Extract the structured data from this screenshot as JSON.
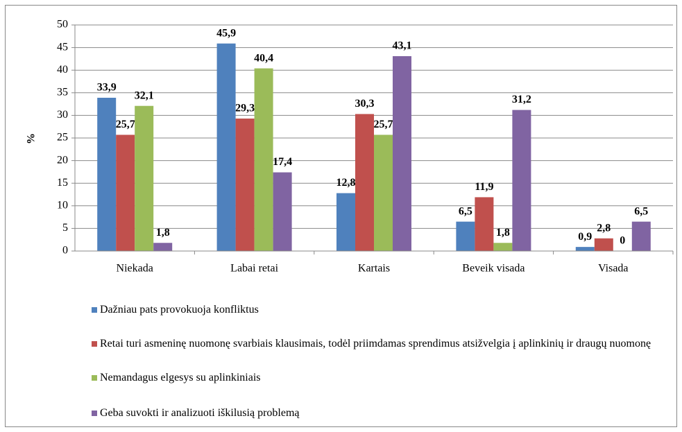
{
  "chart_data": {
    "type": "bar",
    "y_label": "%",
    "categories": [
      "Niekada",
      "Labai retai",
      "Kartais",
      "Beveik visada",
      "Visada"
    ],
    "series": [
      {
        "name": "Dažniau pats provokuoja konfliktus",
        "color": "#4f81bd",
        "values": [
          33.9,
          45.9,
          12.8,
          6.5,
          0.9
        ],
        "value_labels": [
          "33,9",
          "45,9",
          "12,8",
          "6,5",
          "0,9"
        ]
      },
      {
        "name": "Retai turi asmeninę nuomonę svarbiais klausimais, todėl priimdamas sprendimus atsižvelgia į aplinkinių ir draugų nuomonę",
        "color": "#c0504d",
        "values": [
          25.7,
          29.3,
          30.3,
          11.9,
          2.8
        ],
        "value_labels": [
          "25,7",
          "29,3",
          "30,3",
          "11,9",
          "2,8"
        ]
      },
      {
        "name": "Nemandagus elgesys su aplinkiniais",
        "color": "#9bbb59",
        "values": [
          32.1,
          40.4,
          25.7,
          1.8,
          0
        ],
        "value_labels": [
          "32,1",
          "40,4",
          "25,7",
          "1,8",
          "0"
        ]
      },
      {
        "name": "Geba suvokti ir analizuoti iškilusią problemą",
        "color": "#8064a2",
        "values": [
          1.8,
          17.4,
          43.1,
          31.2,
          6.5
        ],
        "value_labels": [
          "1,8",
          "17,4",
          "43,1",
          "31,2",
          "6,5"
        ]
      }
    ],
    "ylim": [
      0,
      50
    ],
    "yticks": [
      0,
      5,
      10,
      15,
      20,
      25,
      30,
      35,
      40,
      45,
      50
    ],
    "grid": true,
    "legend": "bottom"
  }
}
